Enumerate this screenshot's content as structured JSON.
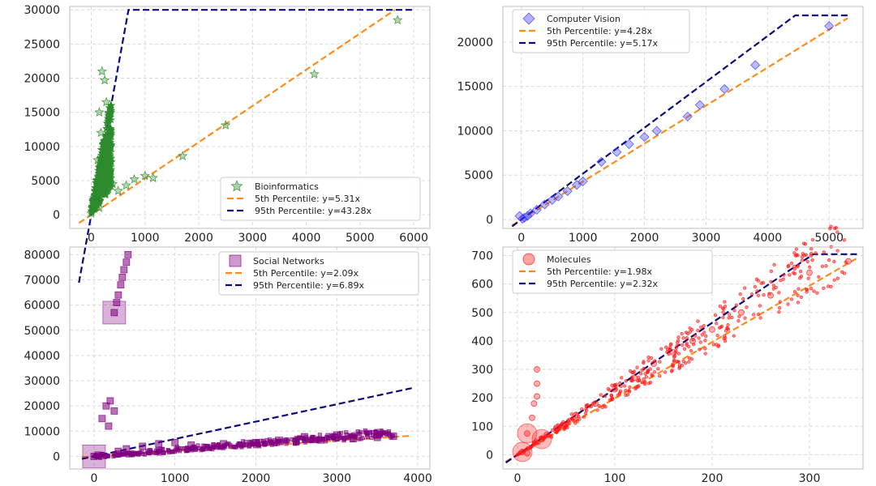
{
  "colors": {
    "orange": "#ff8c1a",
    "navy": "#0a0a78",
    "grid": "#d9d9d9"
  },
  "chart_data": [
    {
      "type": "scatter",
      "title": "",
      "xlabel": "",
      "ylabel": "",
      "xlim": [
        -400,
        6300
      ],
      "ylim": [
        -2000,
        30500
      ],
      "xticks": [
        0,
        1000,
        2000,
        3000,
        4000,
        5000,
        6000
      ],
      "yticks": [
        0,
        5000,
        10000,
        15000,
        20000,
        25000,
        30000
      ],
      "legend_position": "bottom-right",
      "series": [
        {
          "name": "Bioinformatics",
          "kind": "scatter",
          "marker": "star",
          "color": "#2e8b2e",
          "points": [
            [
              5700,
              28500
            ],
            [
              4150,
              20600
            ],
            [
              2500,
              13100
            ],
            [
              1700,
              8600
            ],
            [
              1150,
              5400
            ],
            [
              1000,
              5700
            ],
            [
              800,
              5200
            ],
            [
              650,
              4300
            ],
            [
              200,
              21000
            ],
            [
              250,
              19700
            ],
            [
              150,
              15000
            ],
            [
              180,
              12000
            ],
            [
              280,
              16500
            ],
            [
              120,
              8000
            ],
            [
              200,
              9500
            ],
            [
              100,
              5000
            ],
            [
              300,
              11000
            ],
            [
              60,
              2500
            ],
            [
              350,
              7000
            ],
            [
              250,
              3000
            ],
            [
              0,
              200
            ],
            [
              400,
              4500
            ],
            [
              500,
              3500
            ],
            [
              150,
              1000
            ]
          ],
          "cluster": {
            "x_range": [
              0,
              380
            ],
            "y_range": [
              0,
              16000
            ]
          }
        },
        {
          "name": "5th Percentile: y=5.31x",
          "kind": "line",
          "style": "dashed",
          "color": "#ff8c1a",
          "slope": 5.31,
          "x_range": [
            -230,
            5650
          ],
          "cap": 30000
        },
        {
          "name": "95th Percentile: y=43.28x",
          "kind": "line",
          "style": "dashed",
          "color": "#0a0a78",
          "slope": 43.28,
          "x_range": [
            -230,
            6000
          ],
          "cap": 30000
        }
      ]
    },
    {
      "type": "scatter",
      "title": "",
      "xlabel": "",
      "ylabel": "",
      "xlim": [
        -300,
        5550
      ],
      "ylim": [
        -1000,
        24000
      ],
      "xticks": [
        0,
        1000,
        2000,
        3000,
        4000,
        5000
      ],
      "yticks": [
        0,
        5000,
        10000,
        15000,
        20000
      ],
      "legend_position": "top-left",
      "series": [
        {
          "name": "Computer Vision",
          "kind": "scatter",
          "marker": "diamond",
          "color": "#3b3bff",
          "points": [
            [
              5000,
              21800
            ],
            [
              3800,
              17400
            ],
            [
              3300,
              14700
            ],
            [
              2900,
              12900
            ],
            [
              2700,
              11600
            ],
            [
              2200,
              10000
            ],
            [
              2000,
              9300
            ],
            [
              1750,
              8500
            ],
            [
              1550,
              7600
            ],
            [
              1300,
              6500
            ],
            [
              1000,
              4300
            ],
            [
              900,
              3900
            ],
            [
              750,
              3200
            ],
            [
              600,
              2600
            ],
            [
              500,
              2200
            ],
            [
              380,
              1700
            ],
            [
              250,
              1100
            ],
            [
              150,
              700
            ],
            [
              100,
              400
            ],
            [
              50,
              200
            ],
            [
              20,
              100
            ],
            [
              -30,
              400
            ]
          ]
        },
        {
          "name": "5th Percentile: y=4.28x",
          "kind": "line",
          "style": "dashed",
          "color": "#ff8c1a",
          "slope": 4.28,
          "x_range": [
            -150,
            5300
          ],
          "cap": 23000
        },
        {
          "name": "95th Percentile: y=5.17x",
          "kind": "line",
          "style": "dashed",
          "color": "#0a0a78",
          "slope": 5.17,
          "x_range": [
            -150,
            5300
          ],
          "cap": 23000
        }
      ]
    },
    {
      "type": "scatter",
      "title": "",
      "xlabel": "",
      "ylabel": "",
      "xlim": [
        -300,
        4150
      ],
      "ylim": [
        -5000,
        83000
      ],
      "xticks": [
        0,
        1000,
        2000,
        3000,
        4000
      ],
      "yticks": [
        0,
        10000,
        20000,
        30000,
        40000,
        50000,
        60000,
        70000,
        80000
      ],
      "legend_position": "top-right",
      "series": [
        {
          "name": "Social Networks",
          "kind": "scatter",
          "marker": "square",
          "color": "#800080",
          "points": [
            [
              250,
              57000
            ],
            [
              280,
              61000
            ],
            [
              300,
              64000
            ],
            [
              330,
              68000
            ],
            [
              350,
              71000
            ],
            [
              370,
              74000
            ],
            [
              400,
              77000
            ],
            [
              420,
              80000
            ],
            [
              150,
              20000
            ],
            [
              200,
              22000
            ],
            [
              250,
              18000
            ],
            [
              100,
              15000
            ],
            [
              180,
              12000
            ],
            [
              3700,
              8000
            ],
            [
              3500,
              7500
            ],
            [
              3200,
              7000
            ],
            [
              2800,
              6500
            ],
            [
              2500,
              6000
            ],
            [
              2000,
              5500
            ],
            [
              1600,
              5000
            ],
            [
              1200,
              4500
            ],
            [
              1000,
              5500
            ],
            [
              800,
              5000
            ],
            [
              600,
              4000
            ],
            [
              400,
              3000
            ],
            [
              300,
              2000
            ],
            [
              3000,
              8500
            ],
            [
              2600,
              7800
            ],
            [
              0,
              0
            ],
            [
              50,
              500
            ]
          ],
          "big_markers": [
            [
              250,
              57000
            ],
            [
              0,
              0
            ]
          ]
        },
        {
          "name": "5th Percentile: y=2.09x",
          "kind": "line",
          "style": "dashed",
          "color": "#ff8c1a",
          "slope": 2.09,
          "x_range": [
            -150,
            3900
          ]
        },
        {
          "name": "95th Percentile: y=6.89x",
          "kind": "line",
          "style": "dashed",
          "color": "#0a0a78",
          "slope": 6.89,
          "x_range": [
            -150,
            3950
          ]
        }
      ]
    },
    {
      "type": "scatter",
      "title": "",
      "xlabel": "",
      "ylabel": "",
      "xlim": [
        -15,
        355
      ],
      "ylim": [
        -50,
        730
      ],
      "xticks": [
        0,
        100,
        200,
        300
      ],
      "yticks": [
        0,
        100,
        200,
        300,
        400,
        500,
        600,
        700
      ],
      "legend_position": "top-left",
      "series": [
        {
          "name": "Molecules",
          "kind": "scatter",
          "marker": "circle",
          "color": "#ff1a1a",
          "points": [
            [
              340,
              680
            ],
            [
              300,
              640
            ],
            [
              260,
              560
            ],
            [
              230,
              500
            ],
            [
              200,
              440
            ],
            [
              180,
              400
            ],
            [
              160,
              360
            ],
            [
              140,
              320
            ],
            [
              120,
              270
            ],
            [
              100,
              230
            ],
            [
              80,
              180
            ],
            [
              60,
              140
            ],
            [
              40,
              95
            ],
            [
              30,
              70
            ],
            [
              20,
              300
            ],
            [
              20,
              250
            ],
            [
              20,
              205
            ],
            [
              17,
              180
            ],
            [
              15,
              130
            ],
            [
              10,
              75
            ],
            [
              5,
              10
            ],
            [
              10,
              5
            ],
            [
              25,
              55
            ]
          ],
          "big_markers": [
            [
              10,
              75
            ],
            [
              5,
              10
            ],
            [
              25,
              55
            ]
          ]
        },
        {
          "name": "5th Percentile: y=1.98x",
          "kind": "line",
          "style": "dashed",
          "color": "#ff8c1a",
          "slope": 1.98,
          "x_range": [
            -12,
            348
          ]
        },
        {
          "name": "95th Percentile: y=2.32x",
          "kind": "line",
          "style": "dashed",
          "color": "#0a0a78",
          "slope": 2.32,
          "x_range": [
            -12,
            350
          ],
          "cap": 705
        }
      ]
    }
  ]
}
